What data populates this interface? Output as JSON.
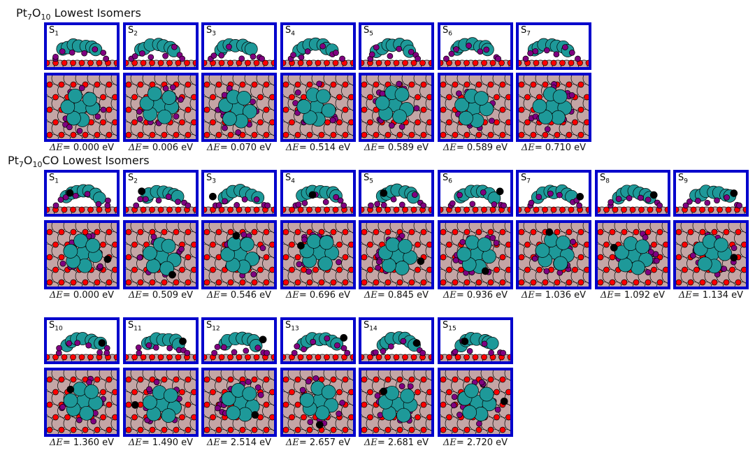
{
  "figure": {
    "sections": [
      {
        "title_parts": {
          "main": "Pt",
          "sub1": "7",
          "mid": "O",
          "sub2": "10",
          "tail": " Lowest Isomers"
        },
        "rows": [
          {
            "isomers": [
              {
                "label": "S",
                "index": "1",
                "energy": "= 0.000 eV"
              },
              {
                "label": "S",
                "index": "2",
                "energy": "= 0.006 eV"
              },
              {
                "label": "S",
                "index": "3",
                "energy": "= 0.070 eV"
              },
              {
                "label": "S",
                "index": "4",
                "energy": "= 0.514 eV"
              },
              {
                "label": "S",
                "index": "5",
                "energy": "= 0.589 eV"
              },
              {
                "label": "S",
                "index": "6",
                "energy": "= 0.589 eV"
              },
              {
                "label": "S",
                "index": "7",
                "energy": "= 0.710 eV"
              }
            ]
          }
        ]
      },
      {
        "title_parts": {
          "main": "Pt",
          "sub1": "7",
          "mid": "O",
          "sub2": "10",
          "tail": "CO Lowest Isomers"
        },
        "rows": [
          {
            "isomers": [
              {
                "label": "S",
                "index": "1",
                "energy": "= 0.000 eV"
              },
              {
                "label": "S",
                "index": "2",
                "energy": "= 0.509 eV"
              },
              {
                "label": "S",
                "index": "3",
                "energy": "= 0.546 eV"
              },
              {
                "label": "S",
                "index": "4",
                "energy": "= 0.696 eV"
              },
              {
                "label": "S",
                "index": "5",
                "energy": "= 0.845 eV"
              },
              {
                "label": "S",
                "index": "6",
                "energy": "= 0.936 eV"
              },
              {
                "label": "S",
                "index": "7",
                "energy": "= 1.036 eV"
              },
              {
                "label": "S",
                "index": "8",
                "energy": "= 1.092 eV"
              },
              {
                "label": "S",
                "index": "9",
                "energy": "= 1.134 eV"
              }
            ]
          },
          {
            "isomers": [
              {
                "label": "S",
                "index": "10",
                "energy": "= 1.360 eV"
              },
              {
                "label": "S",
                "index": "11",
                "energy": "= 1.490 eV"
              },
              {
                "label": "S",
                "index": "12",
                "energy": "= 2.514 eV"
              },
              {
                "label": "S",
                "index": "13",
                "energy": "= 2.657 eV"
              },
              {
                "label": "S",
                "index": "14",
                "energy": "= 2.681 eV"
              },
              {
                "label": "S",
                "index": "15",
                "energy": "= 2.720 eV"
              }
            ]
          }
        ]
      }
    ],
    "energy_prefix": "ΔE",
    "colors": {
      "frame": "#0000cc",
      "support": "#c4a5a5",
      "oxygen": "#ff0000",
      "platinum": "#1e9999",
      "adsorbed_oxygen": "#800080",
      "carbon": "#000000"
    }
  }
}
